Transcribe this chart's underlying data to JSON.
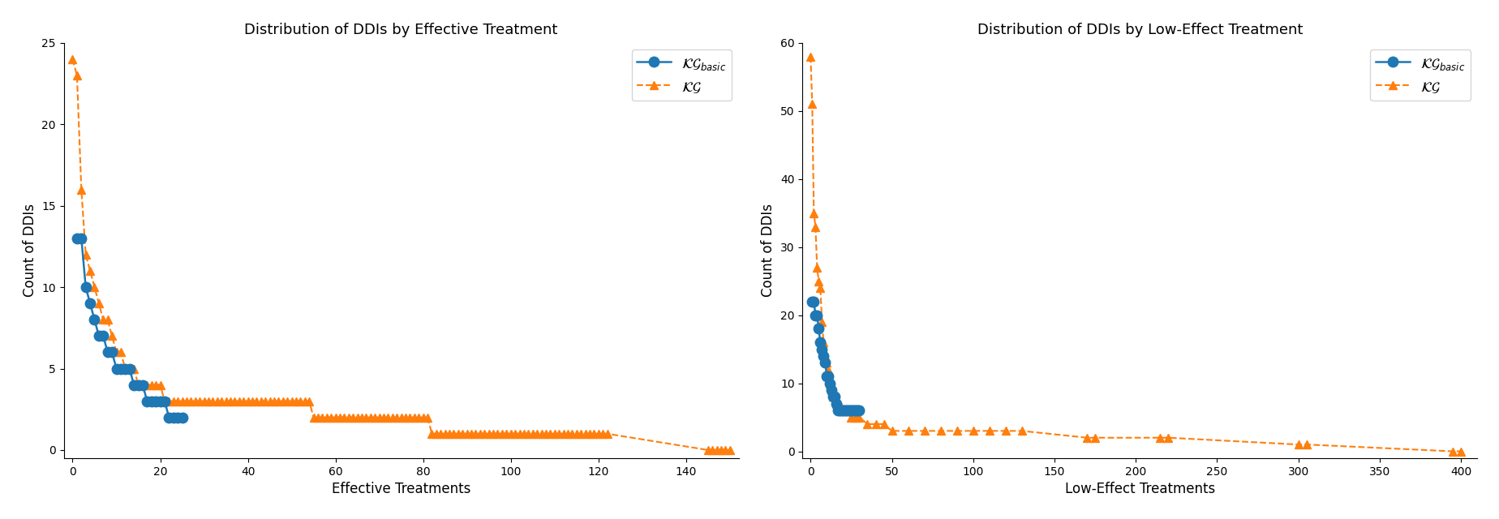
{
  "plot1": {
    "title": "Distribution of DDIs by Effective Treatment",
    "xlabel": "Effective Treatments",
    "ylabel": "Count of DDIs",
    "ylim": [
      -0.5,
      25
    ],
    "xlim": [
      -2,
      152
    ],
    "kg_basic_x": [
      1,
      2,
      3,
      4,
      5,
      6,
      7,
      8,
      9,
      10,
      11,
      12,
      13,
      14,
      15,
      16,
      17,
      18,
      19,
      20,
      21,
      22,
      23,
      24,
      25
    ],
    "kg_basic_y": [
      13,
      13,
      10,
      9,
      8,
      7,
      7,
      6,
      6,
      5,
      5,
      5,
      5,
      4,
      4,
      4,
      3,
      3,
      3,
      3,
      3,
      2,
      2,
      2,
      2
    ],
    "kg_x": [
      0,
      1,
      2,
      3,
      4,
      5,
      6,
      7,
      8,
      9,
      10,
      11,
      12,
      13,
      14,
      15,
      16,
      17,
      18,
      19,
      20,
      21,
      22,
      23,
      24,
      25,
      26,
      27,
      28,
      29,
      30,
      31,
      32,
      33,
      34,
      35,
      36,
      37,
      38,
      39,
      40,
      41,
      42,
      43,
      44,
      45,
      46,
      47,
      48,
      49,
      50,
      51,
      52,
      53,
      54,
      55,
      56,
      57,
      58,
      59,
      60,
      61,
      62,
      63,
      64,
      65,
      66,
      67,
      68,
      69,
      70,
      71,
      72,
      73,
      74,
      75,
      76,
      77,
      78,
      79,
      80,
      81,
      82,
      83,
      84,
      85,
      86,
      87,
      88,
      89,
      90,
      91,
      92,
      93,
      94,
      95,
      96,
      97,
      98,
      99,
      100,
      101,
      102,
      103,
      104,
      105,
      106,
      107,
      108,
      109,
      110,
      111,
      112,
      113,
      114,
      115,
      116,
      117,
      118,
      119,
      120,
      121,
      122,
      145,
      146,
      147,
      148,
      149,
      150
    ],
    "kg_y": [
      24,
      23,
      16,
      12,
      11,
      10,
      9,
      8,
      8,
      7,
      6,
      6,
      5,
      5,
      5,
      4,
      4,
      4,
      4,
      4,
      4,
      3,
      3,
      3,
      3,
      3,
      3,
      3,
      3,
      3,
      3,
      3,
      3,
      3,
      3,
      3,
      3,
      3,
      3,
      3,
      3,
      3,
      3,
      3,
      3,
      3,
      3,
      3,
      3,
      3,
      3,
      3,
      3,
      3,
      3,
      2,
      2,
      2,
      2,
      2,
      2,
      2,
      2,
      2,
      2,
      2,
      2,
      2,
      2,
      2,
      2,
      2,
      2,
      2,
      2,
      2,
      2,
      2,
      2,
      2,
      2,
      2,
      1,
      1,
      1,
      1,
      1,
      1,
      1,
      1,
      1,
      1,
      1,
      1,
      1,
      1,
      1,
      1,
      1,
      1,
      1,
      1,
      1,
      1,
      1,
      1,
      1,
      1,
      1,
      1,
      1,
      1,
      1,
      1,
      1,
      1,
      1,
      1,
      1,
      1,
      1,
      1,
      1,
      0,
      0,
      0,
      0,
      0,
      0
    ]
  },
  "plot2": {
    "title": "Distribution of DDIs by Low-Effect Treatment",
    "xlabel": "Low-Effect Treatments",
    "ylabel": "Count of DDIs",
    "ylim": [
      -1,
      60
    ],
    "xlim": [
      -5,
      410
    ],
    "kg_basic_x": [
      1,
      2,
      3,
      4,
      5,
      6,
      7,
      8,
      9,
      10,
      11,
      12,
      13,
      14,
      15,
      16,
      17,
      18,
      19,
      20,
      21,
      22,
      23,
      24,
      25,
      26,
      27,
      28,
      29,
      30
    ],
    "kg_basic_y": [
      22,
      22,
      20,
      20,
      18,
      16,
      15,
      14,
      13,
      11,
      11,
      10,
      9,
      8,
      8,
      7,
      6,
      6,
      6,
      6,
      6,
      6,
      6,
      6,
      6,
      6,
      6,
      6,
      6,
      6
    ],
    "kg_x": [
      0,
      1,
      2,
      3,
      4,
      5,
      6,
      7,
      8,
      9,
      10,
      11,
      12,
      13,
      14,
      15,
      16,
      17,
      18,
      19,
      20,
      22,
      25,
      28,
      30,
      35,
      40,
      45,
      50,
      60,
      70,
      80,
      90,
      100,
      110,
      120,
      130,
      170,
      175,
      215,
      220,
      300,
      305,
      395,
      400
    ],
    "kg_y": [
      58,
      51,
      35,
      33,
      27,
      25,
      24,
      19,
      16,
      14,
      13,
      12,
      10,
      9,
      8,
      8,
      7,
      7,
      7,
      6,
      6,
      6,
      5,
      5,
      5,
      4,
      4,
      4,
      3,
      3,
      3,
      3,
      3,
      3,
      3,
      3,
      3,
      2,
      2,
      2,
      2,
      1,
      1,
      0,
      0
    ]
  },
  "color_basic": "#1f77b4",
  "color_kg": "#ff7f0e",
  "label_basic": "$\\mathcal{KG}_{basic}$",
  "label_kg": "$\\mathcal{KG}$"
}
